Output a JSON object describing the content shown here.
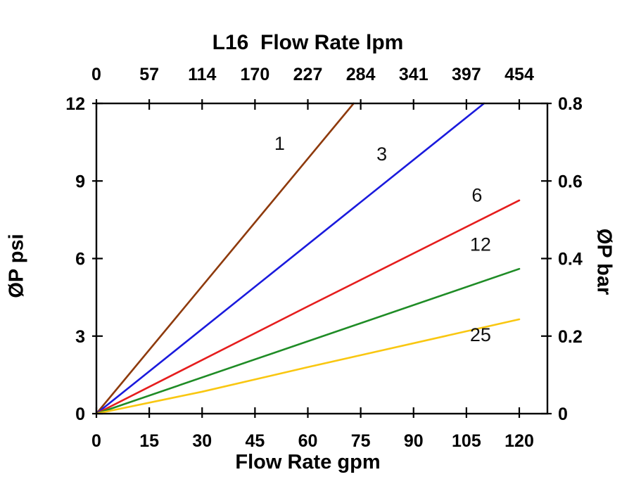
{
  "chart_data": {
    "type": "line",
    "title": "L16  Flow Rate lpm",
    "x_bottom": {
      "label": "Flow Rate gpm",
      "ticks": [
        0,
        15,
        30,
        45,
        60,
        75,
        90,
        105,
        120
      ],
      "range": [
        0,
        128
      ]
    },
    "x_top": {
      "tick_labels": [
        "0",
        "57",
        "114",
        "170",
        "227",
        "284",
        "341",
        "397",
        "454"
      ],
      "units": "lpm"
    },
    "y_left": {
      "label": "ØP psi",
      "ticks": [
        0,
        3,
        6,
        9,
        12
      ],
      "range": [
        0,
        12
      ]
    },
    "y_right": {
      "label": "ØP bar",
      "tick_labels": [
        "0",
        "0.2",
        "0.4",
        "0.6",
        "0.8"
      ],
      "range": [
        0,
        0.8
      ]
    },
    "grid": false,
    "frame_color": "#000000",
    "background": "#ffffff",
    "series": [
      {
        "name": "1",
        "color": "#8e3a0c",
        "points": [
          [
            0,
            0
          ],
          [
            73,
            12
          ]
        ],
        "label_pos": [
          52,
          10.2
        ]
      },
      {
        "name": "3",
        "color": "#1a1add",
        "points": [
          [
            0,
            0
          ],
          [
            110,
            12
          ]
        ],
        "label_pos": [
          81,
          9.8
        ]
      },
      {
        "name": "6",
        "color": "#e51d1d",
        "points": [
          [
            0,
            0
          ],
          [
            60,
            4.15
          ],
          [
            120,
            8.25
          ]
        ],
        "label_pos": [
          108,
          8.2
        ]
      },
      {
        "name": "12",
        "color": "#1f8c26",
        "points": [
          [
            0,
            0
          ],
          [
            60,
            2.8
          ],
          [
            120,
            5.6
          ]
        ],
        "label_pos": [
          109,
          6.3
        ]
      },
      {
        "name": "25",
        "color": "#f9c711",
        "points": [
          [
            0,
            0
          ],
          [
            30,
            0.85
          ],
          [
            60,
            1.8
          ],
          [
            120,
            3.65
          ]
        ],
        "label_pos": [
          109,
          2.8
        ]
      }
    ]
  }
}
